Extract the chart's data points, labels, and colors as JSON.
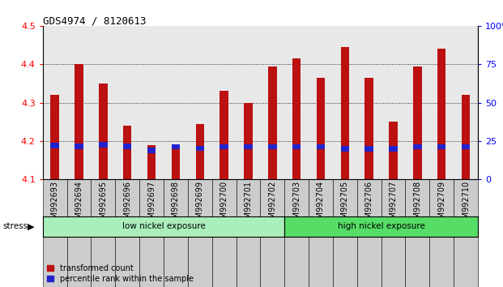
{
  "title": "GDS4974 / 8120613",
  "samples": [
    "GSM992693",
    "GSM992694",
    "GSM992695",
    "GSM992696",
    "GSM992697",
    "GSM992698",
    "GSM992699",
    "GSM992700",
    "GSM992701",
    "GSM992702",
    "GSM992703",
    "GSM992704",
    "GSM992705",
    "GSM992706",
    "GSM992707",
    "GSM992708",
    "GSM992709",
    "GSM992710"
  ],
  "red_values": [
    4.32,
    4.4,
    4.35,
    4.24,
    4.19,
    4.185,
    4.245,
    4.33,
    4.3,
    4.395,
    4.415,
    4.365,
    4.445,
    4.365,
    4.25,
    4.395,
    4.44,
    4.32
  ],
  "blue_top": [
    4.195,
    4.193,
    4.197,
    4.193,
    4.183,
    4.192,
    4.188,
    4.192,
    4.192,
    4.192,
    4.192,
    4.192,
    4.187,
    4.187,
    4.187,
    4.192,
    4.192,
    4.192
  ],
  "blue_bottom": [
    4.181,
    4.179,
    4.183,
    4.179,
    4.169,
    4.178,
    4.174,
    4.178,
    4.178,
    4.178,
    4.178,
    4.178,
    4.173,
    4.173,
    4.173,
    4.178,
    4.178,
    4.178
  ],
  "ymin": 4.1,
  "ymax": 4.5,
  "yticks_left": [
    4.1,
    4.2,
    4.3,
    4.4,
    4.5
  ],
  "yticks_right": [
    0,
    25,
    50,
    75,
    100
  ],
  "low_nickel_count": 10,
  "high_nickel_count": 8,
  "group_label_low": "low nickel exposure",
  "group_label_high": "high nickel exposure",
  "stress_label": "stress",
  "legend_red": "transformed count",
  "legend_blue": "percentile rank within the sample",
  "bar_color_red": "#bb1111",
  "bar_color_blue": "#2222cc",
  "group_bg_low": "#aaeebb",
  "group_bg_high": "#55dd66",
  "plot_bg": "#e8e8e8",
  "xtick_bg": "#cccccc",
  "bar_width": 0.35,
  "title_fontsize": 9,
  "axis_label_fontsize": 8,
  "tick_label_fontsize": 7
}
